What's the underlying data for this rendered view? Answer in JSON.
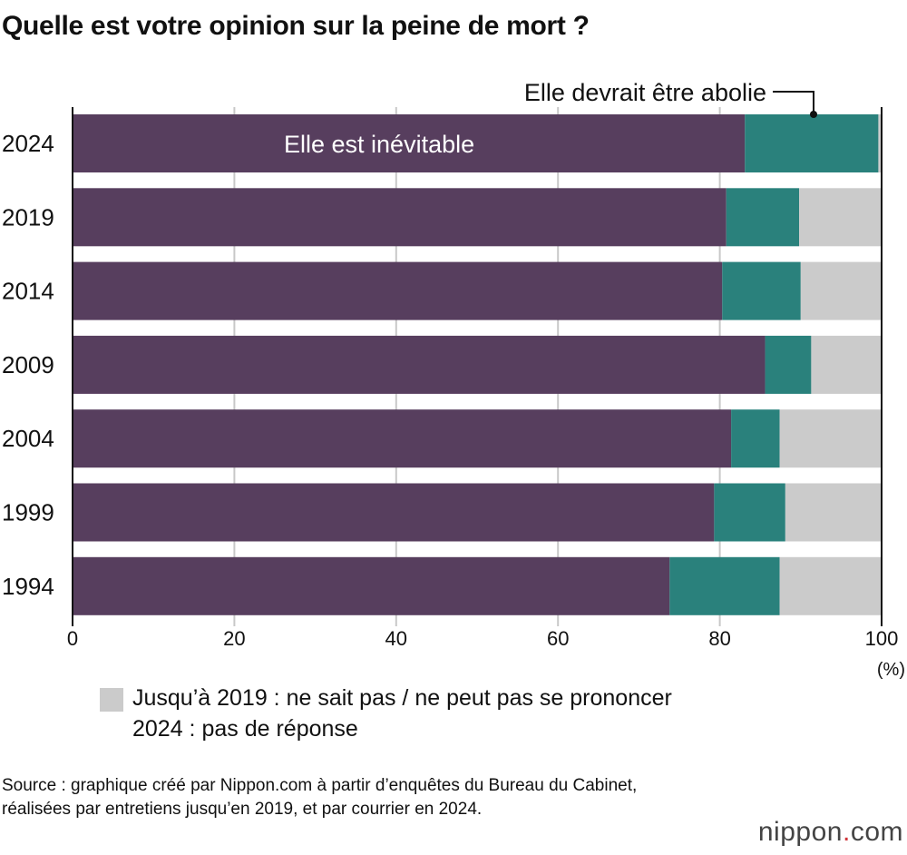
{
  "title": "Quelle est votre opinion sur la peine de mort ?",
  "chart_data": {
    "type": "bar",
    "orientation": "horizontal",
    "stacked": true,
    "categories": [
      "2024",
      "2019",
      "2014",
      "2009",
      "2004",
      "1999",
      "1994"
    ],
    "series": [
      {
        "name": "Elle est inévitable",
        "color": "#573e5e",
        "values": [
          83.1,
          80.8,
          80.3,
          85.6,
          81.4,
          79.3,
          73.8
        ]
      },
      {
        "name": "Elle devrait être abolie",
        "color": "#2a817c",
        "values": [
          16.5,
          9.0,
          9.7,
          5.7,
          6.0,
          8.8,
          13.6
        ]
      },
      {
        "name": "Jusqu’à 2019 : ne sait pas / ne peut pas se prononcer\n2024 : pas de réponse",
        "color": "#cbcbcb",
        "values": [
          0.4,
          10.2,
          9.9,
          8.6,
          12.5,
          11.9,
          12.6
        ]
      }
    ],
    "xlim": [
      0,
      100
    ],
    "xticks": [
      "0",
      "20",
      "40",
      "60",
      "80",
      "100"
    ],
    "xunit": "(%)",
    "grid": true
  },
  "legend": {
    "line1": "Jusqu’à 2019 : ne sait pas / ne peut pas se prononcer",
    "line2": "2024 : pas de réponse"
  },
  "source": "Source : graphique créé par Nippon.com à partir d’enquêtes du Bureau du Cabinet, réalisées par entretiens jusqu’en 2019, et par courrier en 2024.",
  "logo": {
    "name": "nippon",
    "dot": ".",
    "suffix": "com"
  }
}
